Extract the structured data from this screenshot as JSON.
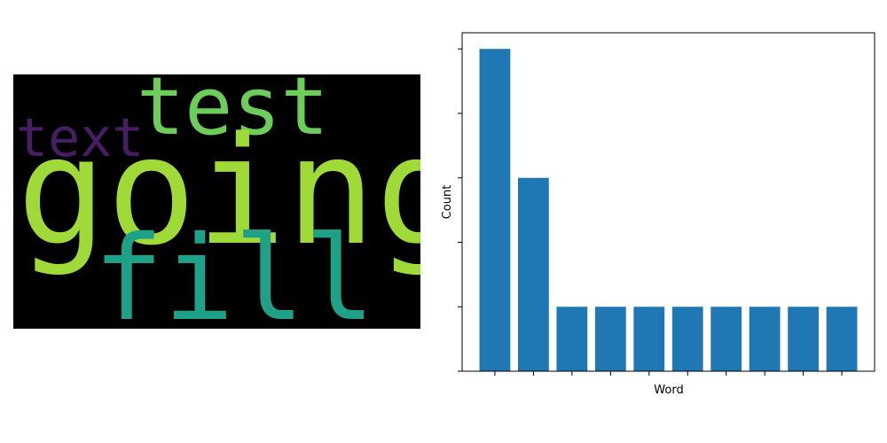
{
  "wordcloud": {
    "background": "#000000",
    "words": [
      {
        "text": "going",
        "color": "#a0da39"
      },
      {
        "text": "fill",
        "color": "#1fa187"
      },
      {
        "text": "test",
        "color": "#6ccd5a"
      },
      {
        "text": "text",
        "color": "#471e63"
      }
    ]
  },
  "chart_data": {
    "type": "bar",
    "categories": [
      "",
      "",
      "",
      "",
      "",
      "",
      "",
      "",
      "",
      ""
    ],
    "values": [
      5,
      3,
      1,
      1,
      1,
      1,
      1,
      1,
      1,
      1
    ],
    "xlabel": "Word",
    "ylabel": "Count",
    "ylim": [
      0,
      5.25
    ],
    "bar_color": "#1f77b4",
    "grid": false
  }
}
